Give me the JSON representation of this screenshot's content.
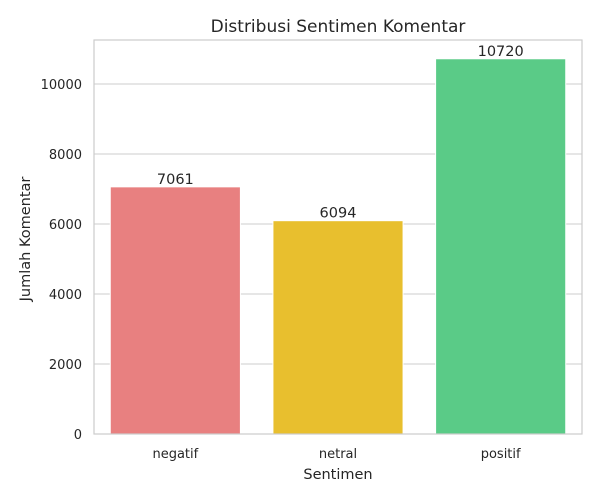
{
  "chart_data": {
    "type": "bar",
    "title": "Distribusi Sentimen Komentar",
    "xlabel": "Sentimen",
    "ylabel": "Jumlah Komentar",
    "categories": [
      "negatif",
      "netral",
      "positif"
    ],
    "values": [
      7061,
      6094,
      10720
    ],
    "data_labels": [
      "7061",
      "6094",
      "10720"
    ],
    "colors": [
      "#e88080",
      "#e8bf2e",
      "#5acb87"
    ],
    "yticks": [
      0,
      2000,
      4000,
      6000,
      8000,
      10000
    ],
    "ylim": [
      0,
      11256
    ],
    "grid": "horizontal",
    "legend": "none"
  }
}
